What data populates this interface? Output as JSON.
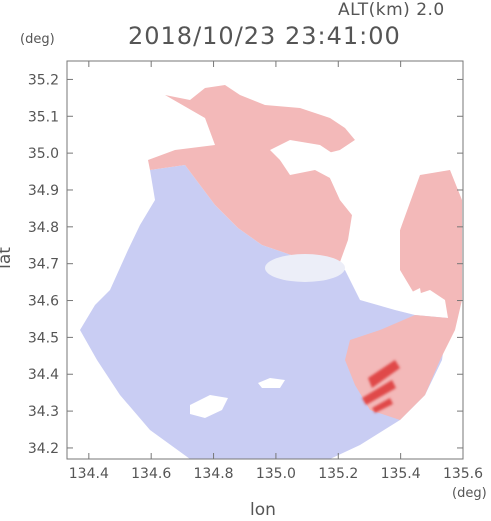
{
  "header": {
    "altitude": "ALT(km) 2.0",
    "timestamp": "2018/10/23 23:41:00"
  },
  "axes": {
    "x_unit": "(deg)",
    "y_unit": "(deg)",
    "x_label": "lon",
    "y_label": "lat"
  },
  "chart_data": {
    "type": "heatmap",
    "x_ticks": [
      "134.4",
      "134.6",
      "134.8",
      "135.0",
      "135.2",
      "135.4",
      "135.6"
    ],
    "y_ticks": [
      "35.2",
      "35.1",
      "35.0",
      "34.9",
      "34.8",
      "34.7",
      "34.6",
      "34.5",
      "34.4",
      "34.3",
      "34.2"
    ],
    "x_range": [
      134.33,
      135.6
    ],
    "y_range": [
      34.17,
      35.25
    ],
    "colors": {
      "receding": "#f3b9b9",
      "approaching": "#c9cdf3",
      "neutral": "#eceef8",
      "strong_receding": "#e04848"
    },
    "grid": false
  }
}
